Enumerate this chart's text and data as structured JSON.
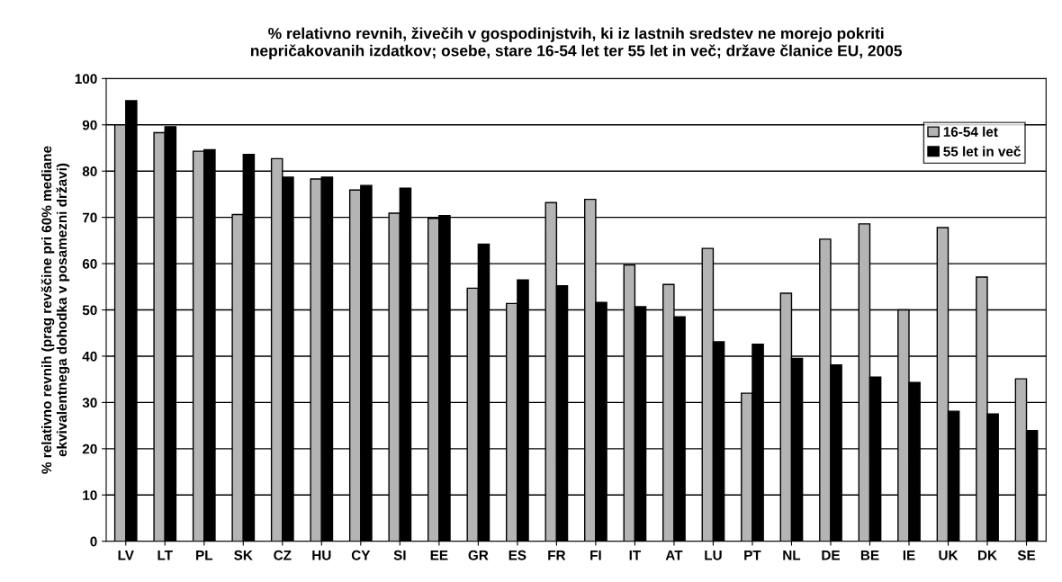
{
  "chart_data": {
    "type": "bar",
    "title": "% relativno revnih, živečih v gospodinjstvih, ki iz lastnih sredstev ne morejo pokriti\nnepričakovanih izdatkov; osebe, stare 16-54 let ter 55 let in več; države članice EU, 2005",
    "ylabel": "% relativno revnih (prag revščine pri 60% mediane\nekvivalentnega dohodka v posamezni državi)",
    "categories": [
      "LV",
      "LT",
      "PL",
      "SK",
      "CZ",
      "HU",
      "CY",
      "SI",
      "EE",
      "GR",
      "ES",
      "FR",
      "FI",
      "IT",
      "AT",
      "LU",
      "PT",
      "NL",
      "DE",
      "BE",
      "IE",
      "UK",
      "DK",
      "SE"
    ],
    "series": [
      {
        "name": "16-54 let",
        "color": "#b4b4b4",
        "values": [
          90.0,
          88.3,
          84.3,
          70.6,
          82.7,
          78.3,
          75.9,
          70.9,
          69.8,
          54.7,
          51.4,
          73.2,
          73.9,
          59.7,
          55.5,
          63.3,
          32.0,
          53.6,
          65.3,
          68.6,
          50.0,
          67.8,
          57.1,
          35.1
        ]
      },
      {
        "name": "55 let in več",
        "color": "#000000",
        "values": [
          95.2,
          89.6,
          84.6,
          83.6,
          78.7,
          78.7,
          76.9,
          76.3,
          70.4,
          64.2,
          56.5,
          55.2,
          51.6,
          50.7,
          48.5,
          43.1,
          42.6,
          39.5,
          38.1,
          35.5,
          34.3,
          28.1,
          27.5,
          23.9
        ]
      }
    ],
    "ylim": [
      0,
      100
    ],
    "yticks": [
      0,
      10,
      20,
      30,
      40,
      50,
      60,
      70,
      80,
      90,
      100
    ],
    "grid": "y",
    "legend": "top right"
  }
}
